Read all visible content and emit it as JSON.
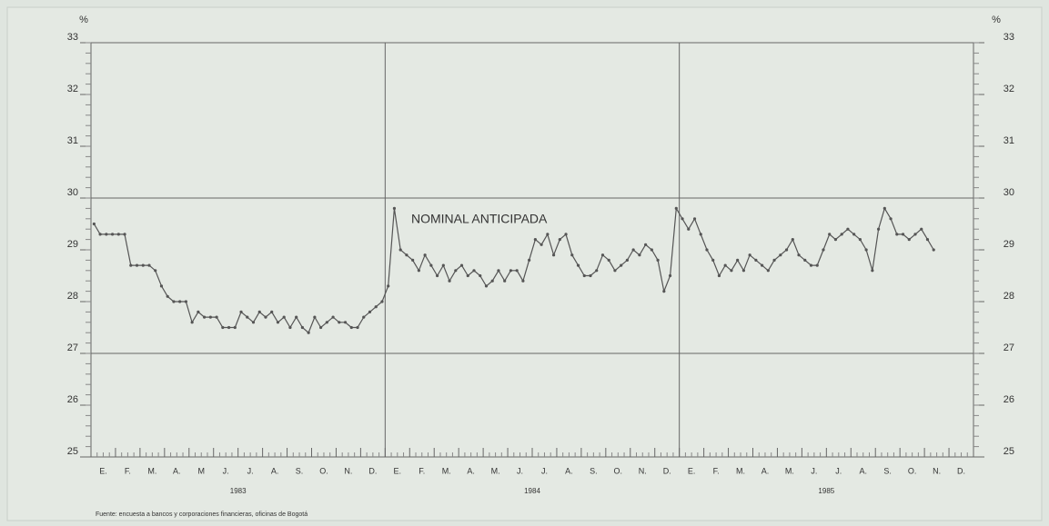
{
  "chart_data": {
    "type": "line",
    "unit_left": "%",
    "unit_right": "%",
    "annotation": "NOMINAL ANTICIPADA",
    "source": "Fuente: encuesta a bancos y corporaciones financieras, oficinas de Bogotá",
    "months": [
      "E.",
      "F.",
      "M.",
      "A.",
      "M",
      "J.",
      "J.",
      "A.",
      "S.",
      "O.",
      "N.",
      "D.",
      "E.",
      "F.",
      "M.",
      "A.",
      "M.",
      "J.",
      "J.",
      "A.",
      "S.",
      "O.",
      "N.",
      "D.",
      "E.",
      "F.",
      "M.",
      "A.",
      "M.",
      "J.",
      "J.",
      "A.",
      "S.",
      "O.",
      "N.",
      "D."
    ],
    "years": [
      "1983",
      "1984",
      "1985"
    ],
    "ylim": [
      25,
      33
    ],
    "yticks": [
      25,
      26,
      27,
      28,
      29,
      30,
      31,
      32,
      33
    ],
    "grid_lines": [
      27,
      30
    ],
    "color": "#555555",
    "values": [
      29.5,
      29.3,
      29.3,
      29.3,
      29.3,
      29.3,
      28.7,
      28.7,
      28.7,
      28.7,
      28.6,
      28.3,
      28.1,
      28.0,
      28.0,
      28.0,
      27.6,
      27.8,
      27.7,
      27.7,
      27.7,
      27.5,
      27.5,
      27.5,
      27.8,
      27.7,
      27.6,
      27.8,
      27.7,
      27.8,
      27.6,
      27.7,
      27.5,
      27.7,
      27.5,
      27.4,
      27.7,
      27.5,
      27.6,
      27.7,
      27.6,
      27.6,
      27.5,
      27.5,
      27.7,
      27.8,
      27.9,
      28.0,
      28.3,
      29.8,
      29.0,
      28.9,
      28.8,
      28.6,
      28.9,
      28.7,
      28.5,
      28.7,
      28.4,
      28.6,
      28.7,
      28.5,
      28.6,
      28.5,
      28.3,
      28.4,
      28.6,
      28.4,
      28.6,
      28.6,
      28.4,
      28.8,
      29.2,
      29.1,
      29.3,
      28.9,
      29.2,
      29.3,
      28.9,
      28.7,
      28.5,
      28.5,
      28.6,
      28.9,
      28.8,
      28.6,
      28.7,
      28.8,
      29.0,
      28.9,
      29.1,
      29.0,
      28.8,
      28.2,
      28.5,
      29.8,
      29.6,
      29.4,
      29.6,
      29.3,
      29.0,
      28.8,
      28.5,
      28.7,
      28.6,
      28.8,
      28.6,
      28.9,
      28.8,
      28.7,
      28.6,
      28.8,
      28.9,
      29.0,
      29.2,
      28.9,
      28.8,
      28.7,
      28.7,
      29.0,
      29.3,
      29.2,
      29.3,
      29.4,
      29.3,
      29.2,
      29.0,
      28.6,
      29.4,
      29.8,
      29.6,
      29.3,
      29.3,
      29.2,
      29.3,
      29.4,
      29.2,
      29.0,
      null,
      null,
      null,
      null,
      null,
      null
    ]
  }
}
